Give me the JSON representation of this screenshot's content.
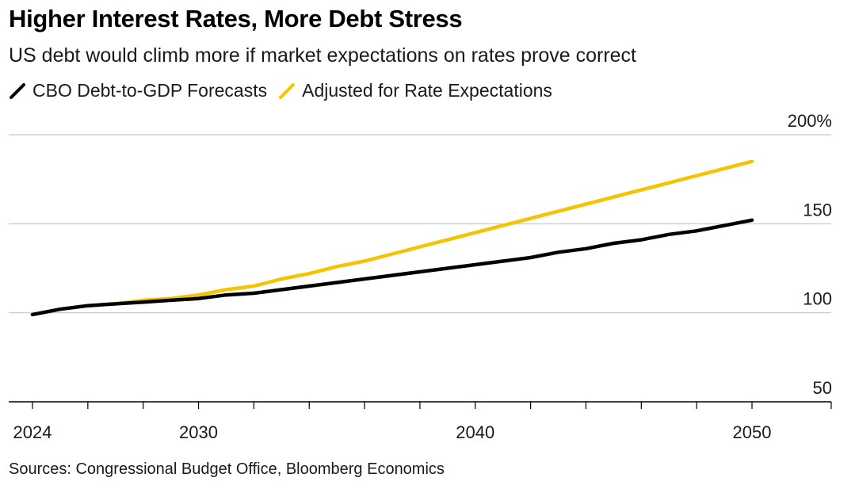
{
  "header": {
    "title": "Higher Interest Rates, More Debt Stress",
    "subtitle": "US debt would climb more if market expectations on rates prove correct"
  },
  "footer": {
    "source": "Sources: Congressional Budget Office, Bloomberg Economics"
  },
  "colors": {
    "cbo": "#000000",
    "adjusted": "#f5c400",
    "grid": "#d0d0d0",
    "axis": "#000000"
  },
  "chart_data": {
    "type": "line",
    "title": "Higher Interest Rates, More Debt Stress",
    "subtitle": "US debt would climb more if market expectations on rates prove correct",
    "xlabel": "",
    "ylabel": "",
    "xlim": [
      2024,
      2050
    ],
    "ylim": [
      50,
      200
    ],
    "x_ticks": [
      2024,
      2030,
      2040,
      2050
    ],
    "x_tick_labels": [
      "2024",
      "2030",
      "2040",
      "2050"
    ],
    "y_ticks": [
      50,
      100,
      150,
      200
    ],
    "y_tick_labels": [
      "50",
      "100",
      "150",
      "200%"
    ],
    "grid": true,
    "legend_position": "top-left",
    "series": [
      {
        "name": "CBO Debt-to-GDP Forecasts",
        "color": "#000000",
        "x": [
          2024,
          2025,
          2026,
          2027,
          2028,
          2029,
          2030,
          2031,
          2032,
          2033,
          2034,
          2035,
          2036,
          2037,
          2038,
          2039,
          2040,
          2041,
          2042,
          2043,
          2044,
          2045,
          2046,
          2047,
          2048,
          2049,
          2050
        ],
        "values": [
          99,
          102,
          104,
          105,
          106,
          107,
          108,
          110,
          111,
          113,
          115,
          117,
          119,
          121,
          123,
          125,
          127,
          129,
          131,
          134,
          136,
          139,
          141,
          144,
          146,
          149,
          152
        ]
      },
      {
        "name": "Adjusted for Rate Expectations",
        "color": "#f5c400",
        "x": [
          2024,
          2025,
          2026,
          2027,
          2028,
          2029,
          2030,
          2031,
          2032,
          2033,
          2034,
          2035,
          2036,
          2037,
          2038,
          2039,
          2040,
          2041,
          2042,
          2043,
          2044,
          2045,
          2046,
          2047,
          2048,
          2049,
          2050
        ],
        "values": [
          99,
          102,
          104,
          105,
          107,
          108,
          110,
          113,
          115,
          119,
          122,
          126,
          129,
          133,
          137,
          141,
          145,
          149,
          153,
          157,
          161,
          165,
          169,
          173,
          177,
          181,
          185
        ]
      }
    ]
  }
}
